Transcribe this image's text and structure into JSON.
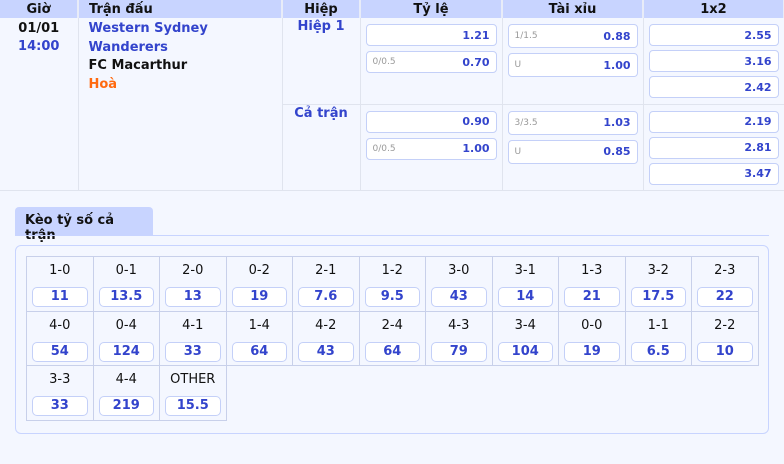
{
  "headers": [
    "Giờ",
    "Trận đấu",
    "Hiệp",
    "Tỷ lệ",
    "Tài xỉu",
    "1x2"
  ],
  "match": {
    "date": "01/01",
    "time": "14:00",
    "home": "Western Sydney Wanderers",
    "away": "FC Macarthur",
    "draw": "Hoà"
  },
  "periods": [
    {
      "name": "Hiệp 1",
      "handicap": [
        {
          "line": "",
          "odds": "1.21"
        },
        {
          "line": "0/0.5",
          "odds": "0.70"
        }
      ],
      "overunder": [
        {
          "line": "1/1.5",
          "odds": "0.88"
        },
        {
          "line": "U",
          "odds": "1.00"
        }
      ],
      "x12": [
        "2.55",
        "3.16",
        "2.42"
      ]
    },
    {
      "name": "Cả trận",
      "handicap": [
        {
          "line": "",
          "odds": "0.90"
        },
        {
          "line": "0/0.5",
          "odds": "1.00"
        }
      ],
      "overunder": [
        {
          "line": "3/3.5",
          "odds": "1.03"
        },
        {
          "line": "U",
          "odds": "0.85"
        }
      ],
      "x12": [
        "2.19",
        "2.81",
        "3.47"
      ]
    }
  ],
  "correct_score": {
    "tab": "Kèo tỷ số cả trận",
    "items": [
      {
        "s": "1-0",
        "o": "11"
      },
      {
        "s": "0-1",
        "o": "13.5"
      },
      {
        "s": "2-0",
        "o": "13"
      },
      {
        "s": "0-2",
        "o": "19"
      },
      {
        "s": "2-1",
        "o": "7.6"
      },
      {
        "s": "1-2",
        "o": "9.5"
      },
      {
        "s": "3-0",
        "o": "43"
      },
      {
        "s": "3-1",
        "o": "14"
      },
      {
        "s": "1-3",
        "o": "21"
      },
      {
        "s": "3-2",
        "o": "17.5"
      },
      {
        "s": "2-3",
        "o": "22"
      },
      {
        "s": "4-0",
        "o": "54"
      },
      {
        "s": "0-4",
        "o": "124"
      },
      {
        "s": "4-1",
        "o": "33"
      },
      {
        "s": "1-4",
        "o": "64"
      },
      {
        "s": "4-2",
        "o": "43"
      },
      {
        "s": "2-4",
        "o": "64"
      },
      {
        "s": "4-3",
        "o": "79"
      },
      {
        "s": "3-4",
        "o": "104"
      },
      {
        "s": "0-0",
        "o": "19"
      },
      {
        "s": "1-1",
        "o": "6.5"
      },
      {
        "s": "2-2",
        "o": "10"
      },
      {
        "s": "3-3",
        "o": "33"
      },
      {
        "s": "4-4",
        "o": "219"
      },
      {
        "s": "OTHER",
        "o": "15.5"
      }
    ]
  }
}
